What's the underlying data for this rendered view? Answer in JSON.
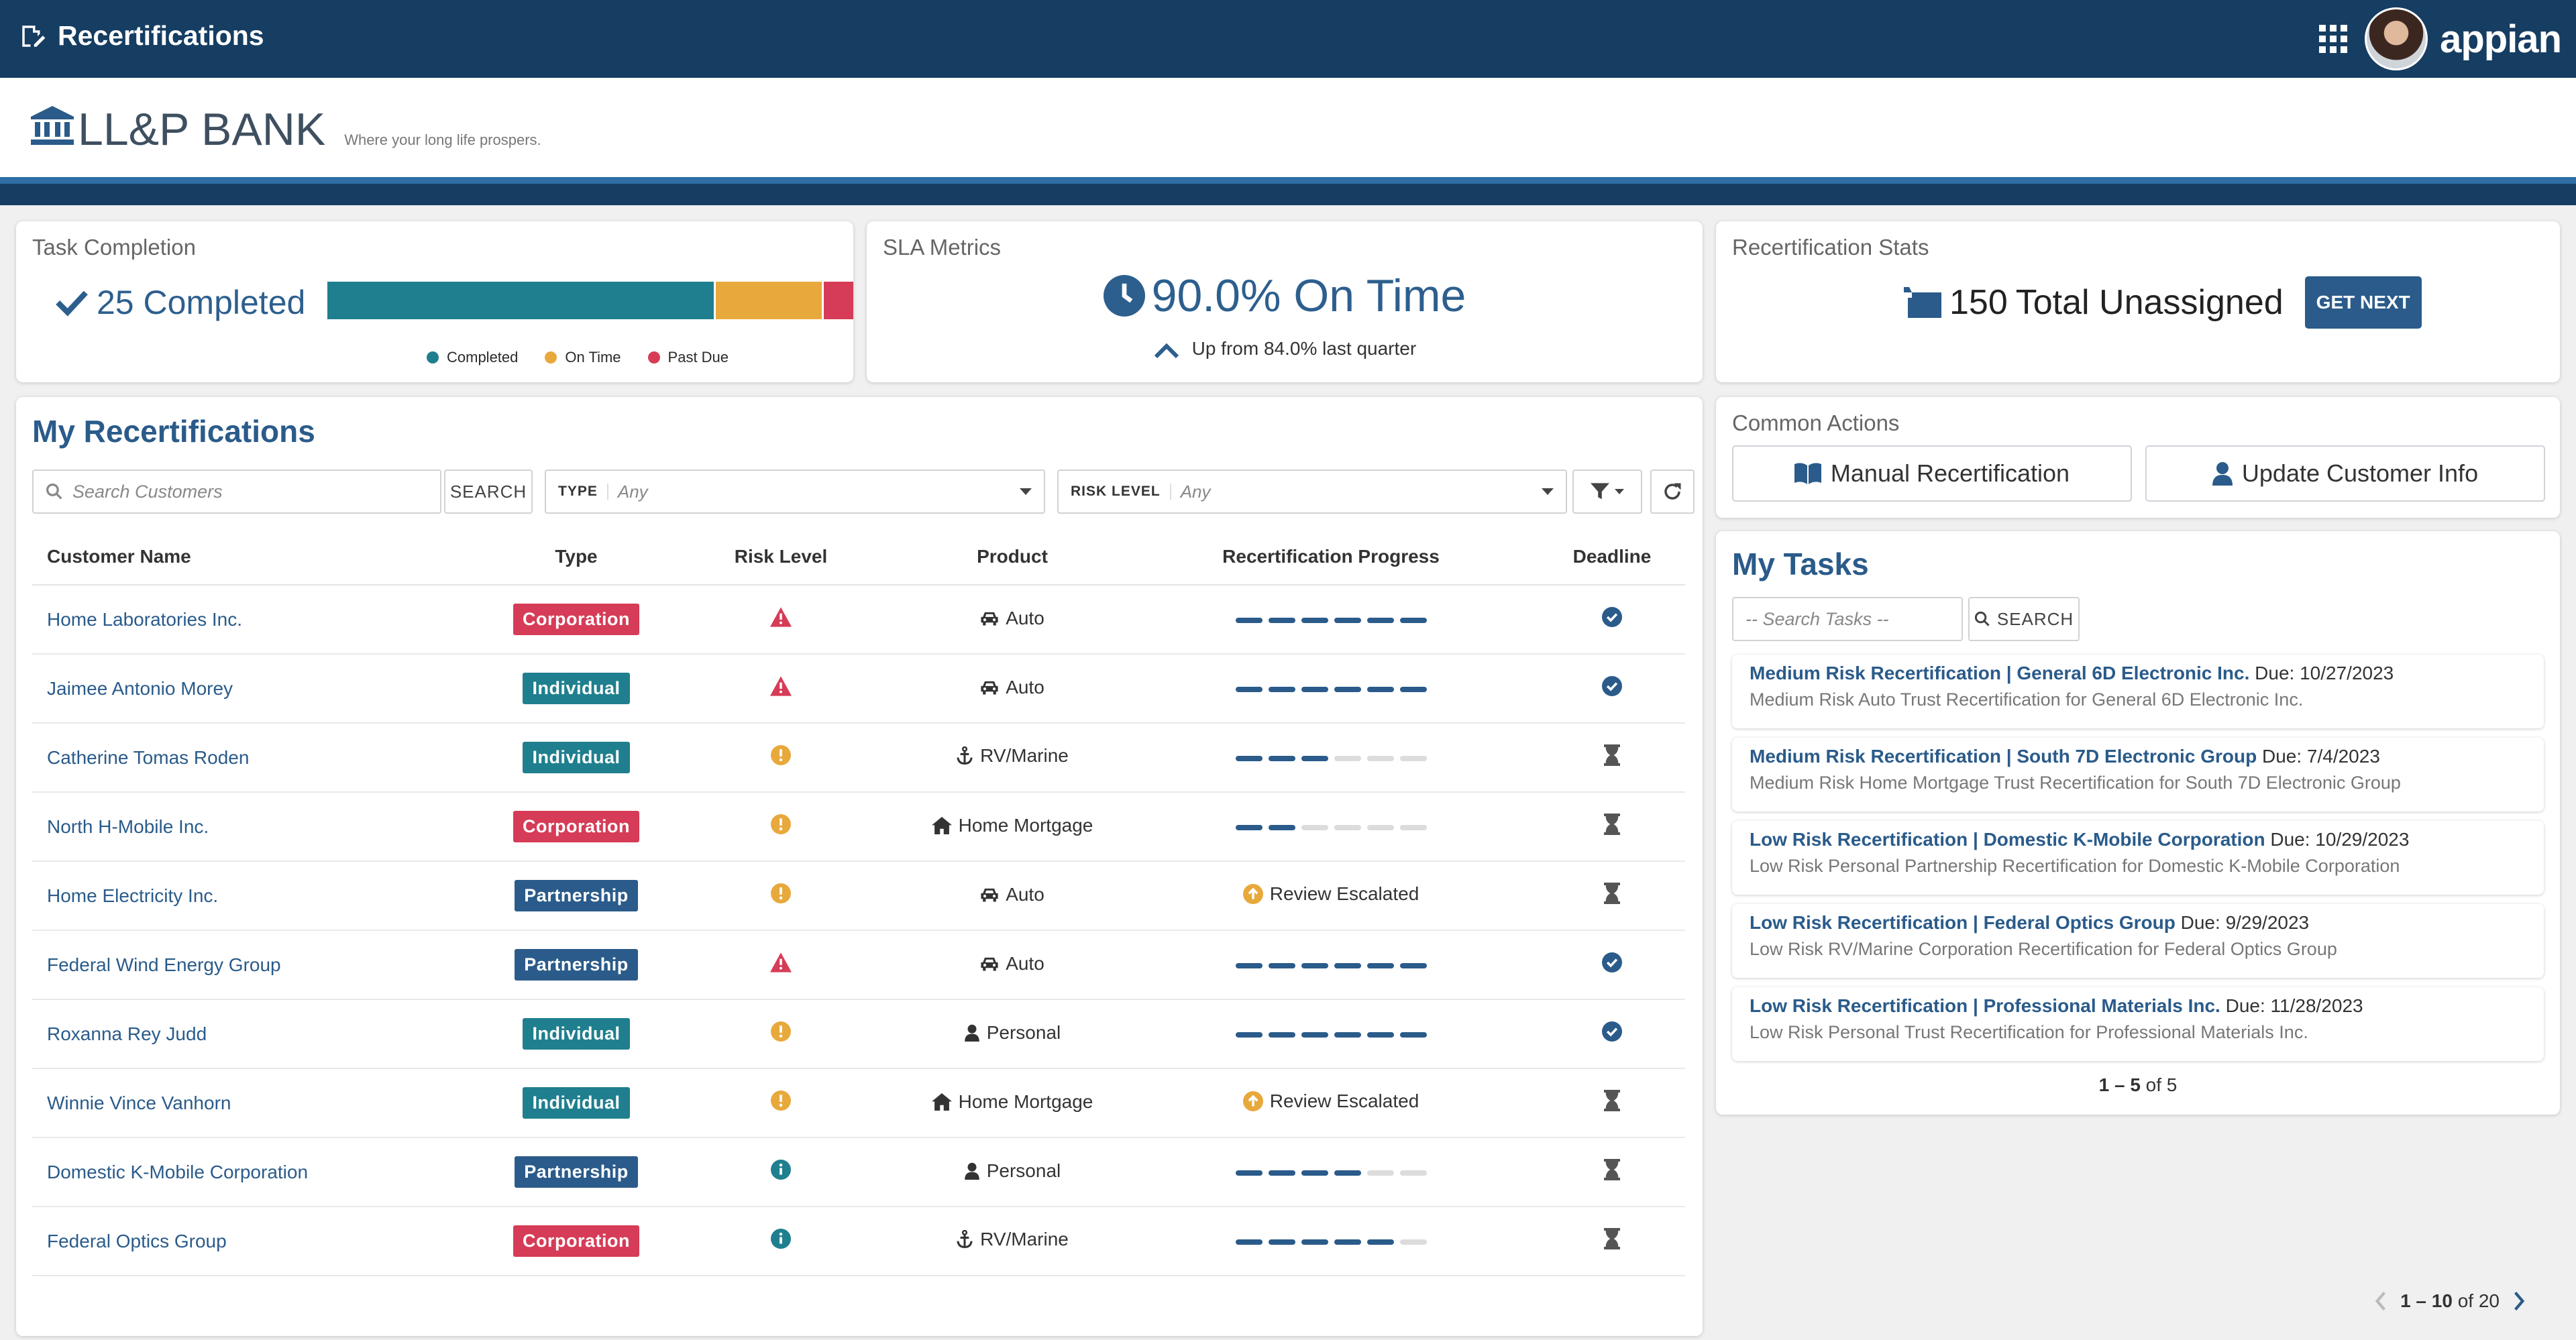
{
  "header": {
    "app_title": "Recertifications",
    "logo_text": "appian"
  },
  "brand": {
    "name": "LL&P BANK",
    "tagline": "Where your long life prospers."
  },
  "colors": {
    "primary": "#163d62",
    "accent": "#2a5b8a",
    "completed": "#1f7f8e",
    "on_time": "#e8a93c",
    "past_due": "#d63c57"
  },
  "task_completion": {
    "label": "Task Completion",
    "value_text": "25 Completed",
    "bar": [
      {
        "key": "completed",
        "fraction": 0.735
      },
      {
        "key": "on_time",
        "fraction": 0.205
      },
      {
        "key": "past_due",
        "fraction": 0.06
      }
    ],
    "legend": [
      "Completed",
      "On Time",
      "Past Due"
    ]
  },
  "sla": {
    "label": "SLA Metrics",
    "value_text": "90.0% On Time",
    "sub_text": "Up from 84.0% last quarter"
  },
  "stats": {
    "label": "Recertification Stats",
    "count": "150",
    "text": "Total Unassigned",
    "button": "GET NEXT"
  },
  "common_actions": {
    "label": "Common Actions",
    "manual": "Manual Recertification",
    "update": "Update Customer Info"
  },
  "recerts": {
    "title": "My Recertifications",
    "search_placeholder": "Search Customers",
    "search_button": "SEARCH",
    "type_label": "TYPE",
    "type_value": "Any",
    "risk_label": "RISK LEVEL",
    "risk_value": "Any",
    "columns": [
      "Customer Name",
      "Type",
      "Risk Level",
      "Product",
      "Recertification Progress",
      "Deadline"
    ],
    "rows": [
      {
        "name": "Home Laboratories Inc.",
        "type": "Corporation",
        "risk": "high",
        "product": "Auto",
        "product_icon": "car",
        "progress": 6,
        "escalated": false,
        "deadline": "complete"
      },
      {
        "name": "Jaimee Antonio Morey",
        "type": "Individual",
        "risk": "high",
        "product": "Auto",
        "product_icon": "car",
        "progress": 6,
        "escalated": false,
        "deadline": "complete"
      },
      {
        "name": "Catherine Tomas Roden",
        "type": "Individual",
        "risk": "medium",
        "product": "RV/Marine",
        "product_icon": "anchor",
        "progress": 3,
        "escalated": false,
        "deadline": "pending"
      },
      {
        "name": "North H-Mobile Inc.",
        "type": "Corporation",
        "risk": "medium",
        "product": "Home Mortgage",
        "product_icon": "home",
        "progress": 2,
        "escalated": false,
        "deadline": "pending"
      },
      {
        "name": "Home Electricity Inc.",
        "type": "Partnership",
        "risk": "medium",
        "product": "Auto",
        "product_icon": "car",
        "progress": 0,
        "escalated": true,
        "deadline": "pending"
      },
      {
        "name": "Federal Wind Energy Group",
        "type": "Partnership",
        "risk": "high",
        "product": "Auto",
        "product_icon": "car",
        "progress": 6,
        "escalated": false,
        "deadline": "complete"
      },
      {
        "name": "Roxanna Rey Judd",
        "type": "Individual",
        "risk": "medium",
        "product": "Personal",
        "product_icon": "user",
        "progress": 6,
        "escalated": false,
        "deadline": "complete"
      },
      {
        "name": "Winnie Vince Vanhorn",
        "type": "Individual",
        "risk": "medium",
        "product": "Home Mortgage",
        "product_icon": "home",
        "progress": 0,
        "escalated": true,
        "deadline": "pending"
      },
      {
        "name": "Domestic K-Mobile Corporation",
        "type": "Partnership",
        "risk": "low",
        "product": "Personal",
        "product_icon": "user",
        "progress": 4,
        "escalated": false,
        "deadline": "pending"
      },
      {
        "name": "Federal Optics Group",
        "type": "Corporation",
        "risk": "low",
        "product": "RV/Marine",
        "product_icon": "anchor",
        "progress": 5,
        "escalated": false,
        "deadline": "pending"
      }
    ],
    "escalated_text": "Review Escalated",
    "pager": {
      "range": "1 – 10",
      "of_text": "of 20"
    }
  },
  "tasks": {
    "title": "My Tasks",
    "search_placeholder": "-- Search Tasks --",
    "search_button": "SEARCH",
    "items": [
      {
        "title": "Medium Risk Recertification | General 6D Electronic Inc.",
        "due": "Due: 10/27/2023",
        "desc": "Medium Risk Auto Trust Recertification for General 6D Electronic Inc."
      },
      {
        "title": "Medium Risk Recertification | South 7D Electronic Group",
        "due": "Due: 7/4/2023",
        "desc": "Medium Risk Home Mortgage Trust Recertification for South 7D Electronic Group"
      },
      {
        "title": "Low Risk Recertification | Domestic K-Mobile Corporation",
        "due": "Due: 10/29/2023",
        "desc": "Low Risk Personal Partnership Recertification for Domestic K-Mobile Corporation"
      },
      {
        "title": "Low Risk Recertification | Federal Optics Group",
        "due": "Due: 9/29/2023",
        "desc": "Low Risk RV/Marine Corporation Recertification for Federal Optics Group"
      },
      {
        "title": "Low Risk Recertification | Professional Materials Inc.",
        "due": "Due: 11/28/2023",
        "desc": "Low Risk Personal Trust Recertification for Professional Materials Inc."
      }
    ],
    "pager": {
      "range": "1 – 5",
      "of_text": "of 5"
    }
  }
}
